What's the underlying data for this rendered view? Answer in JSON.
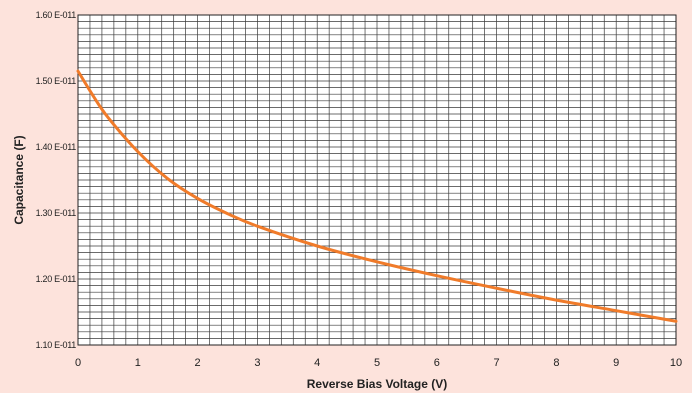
{
  "chart_data": {
    "type": "line",
    "xlabel": "Reverse Bias Voltage (V)",
    "ylabel": "Capacitance (F)",
    "xlim": [
      0,
      10
    ],
    "ylim": [
      1.1e-11,
      1.6e-11
    ],
    "x_ticks": [
      0,
      1,
      2,
      3,
      4,
      5,
      6,
      7,
      8,
      9,
      10
    ],
    "x_tick_labels": [
      "0",
      "1",
      "2",
      "3",
      "4",
      "5",
      "6",
      "7",
      "8",
      "9",
      "10"
    ],
    "y_ticks": [
      1.1e-11,
      1.2e-11,
      1.3e-11,
      1.4e-11,
      1.5e-11,
      1.6e-11
    ],
    "y_tick_labels": [
      "1.10 E-011",
      "1.20 E-011",
      "1.30 E-011",
      "1.40 E-011",
      "1.50 E-011",
      "1.60 E-011"
    ],
    "grid": true,
    "line_color": "#f07b2a",
    "series": [
      {
        "x": [
          0,
          0.25,
          0.5,
          1,
          1.5,
          2,
          2.5,
          3,
          4,
          5,
          6,
          7,
          8,
          9,
          10
        ],
        "y": [
          1.515e-11,
          1.478e-11,
          1.445e-11,
          1.393e-11,
          1.352e-11,
          1.322e-11,
          1.299e-11,
          1.28e-11,
          1.25e-11,
          1.226e-11,
          1.205e-11,
          1.186e-11,
          1.168e-11,
          1.152e-11,
          1.136e-11
        ]
      }
    ]
  }
}
